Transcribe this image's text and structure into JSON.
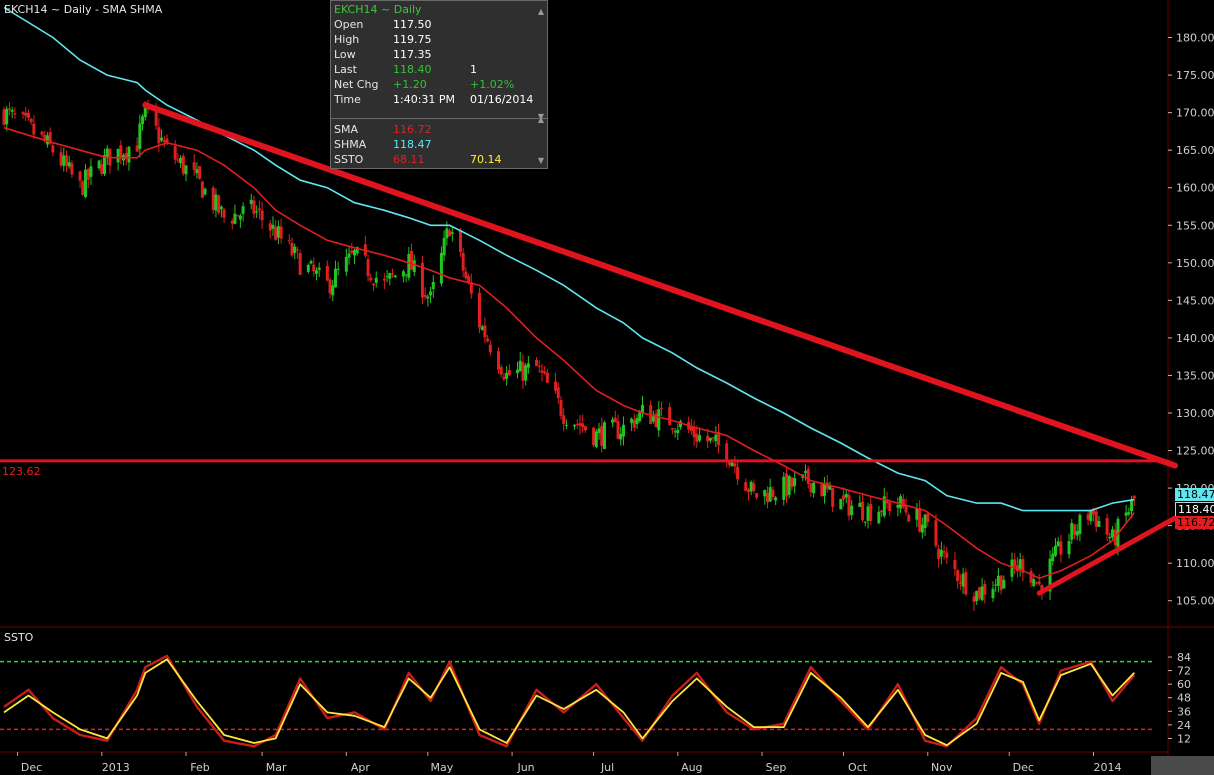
{
  "header": {
    "title": "EKCH14 ~ Daily  -  SMA SHMA",
    "ssto_title": "SSTO"
  },
  "info_box": {
    "symbol": "EKCH14 ~ Daily",
    "open_label": "Open",
    "open": "117.50",
    "high_label": "High",
    "high": "119.75",
    "low_label": "Low",
    "low": "117.35",
    "last_label": "Last",
    "last": "118.40",
    "last_extra": "1",
    "netchg_label": "Net Chg",
    "netchg": "+1.20",
    "netchg_pct": "+1.02%",
    "time_label": "Time",
    "time": "1:40:31 PM",
    "date": "01/16/2014",
    "sma_label": "SMA",
    "sma": "116.72",
    "shma_label": "SHMA",
    "shma": "118.47",
    "ssto_label": "SSTO",
    "ssto_k": "68.11",
    "ssto_d": "70.14"
  },
  "price_tags": {
    "shma": "118.47",
    "last": "118.40",
    "sma": "116.72",
    "horizontal_level": "123.62"
  },
  "colors": {
    "up": "#22c422",
    "down": "#e02020",
    "sma": "#e01e1e",
    "shma": "#5fe6ef",
    "trend": "#e0141e",
    "ssto_k": "#c81e1e",
    "ssto_d": "#ffe83a",
    "grid_green": "#22e022",
    "grid_red": "#e02020"
  },
  "chart_data": [
    {
      "type": "candlestick",
      "title": "EKCH14 ~ Daily  -  SMA SHMA",
      "x_tick_labels": [
        "Dec",
        "2013",
        "Feb",
        "Mar",
        "Apr",
        "May",
        "Jun",
        "Jul",
        "Aug",
        "Sep",
        "Oct",
        "Nov",
        "Dec",
        "2014"
      ],
      "y_tick_labels": [
        "105.00",
        "110.00",
        "115.00",
        "120.00",
        "125.00",
        "130.00",
        "135.00",
        "140.00",
        "145.00",
        "150.00",
        "155.00",
        "160.00",
        "165.00",
        "170.00",
        "175.00",
        "180.00"
      ],
      "ylim": [
        101.5,
        185
      ],
      "x": [
        "2012-11-26",
        "2012-12-05",
        "2012-12-14",
        "2012-12-24",
        "2013-01-03",
        "2013-01-14",
        "2013-01-17",
        "2013-01-25",
        "2013-02-05",
        "2013-02-15",
        "2013-02-26",
        "2013-03-06",
        "2013-03-15",
        "2013-03-25",
        "2013-04-04",
        "2013-04-15",
        "2013-04-24",
        "2013-05-02",
        "2013-05-09",
        "2013-05-20",
        "2013-05-30",
        "2013-06-10",
        "2013-06-20",
        "2013-07-02",
        "2013-07-12",
        "2013-07-19",
        "2013-07-30",
        "2013-08-08",
        "2013-08-19",
        "2013-08-29",
        "2013-09-09",
        "2013-09-19",
        "2013-09-30",
        "2013-10-10",
        "2013-10-21",
        "2013-10-31",
        "2013-11-08",
        "2013-11-19",
        "2013-11-28",
        "2013-12-06",
        "2013-12-12",
        "2013-12-20",
        "2013-12-31",
        "2014-01-08",
        "2014-01-16"
      ],
      "close": [
        170,
        168,
        165,
        160,
        164,
        166,
        170,
        165,
        161,
        156,
        157,
        154,
        150,
        147,
        151,
        147,
        150,
        145,
        155,
        142,
        135,
        136,
        130,
        127,
        128,
        130,
        129,
        127,
        125,
        119,
        120,
        121,
        118,
        117,
        118,
        115,
        110,
        106,
        108,
        110,
        107,
        112,
        117,
        113,
        118.4
      ],
      "series": [
        {
          "name": "SMA",
          "values": [
            168,
            167,
            166,
            165,
            164,
            164,
            165,
            166,
            165,
            163,
            160,
            157,
            155,
            153,
            152,
            151,
            150,
            149,
            148,
            147,
            144,
            140,
            137,
            133,
            131,
            130,
            129,
            128,
            127,
            125,
            123,
            121,
            120,
            119,
            118,
            117,
            115,
            112,
            110,
            109,
            108,
            109,
            111,
            113,
            116.72
          ]
        },
        {
          "name": "SHMA",
          "values": [
            184,
            182,
            180,
            177,
            175,
            174,
            173,
            171,
            169,
            167,
            165,
            163,
            161,
            160,
            158,
            157,
            156,
            155,
            155,
            153,
            151,
            149,
            147,
            144,
            142,
            140,
            138,
            136,
            134,
            132,
            130,
            128,
            126,
            124,
            122,
            121,
            119,
            118,
            118,
            117,
            117,
            117,
            117,
            118,
            118.47
          ]
        }
      ],
      "trendlines": [
        {
          "from": [
            "2013-01-17",
            171
          ],
          "to": [
            "2014-01-31",
            123
          ]
        },
        {
          "from": [
            "2013-12-12",
            106
          ],
          "to": [
            "2014-01-31",
            116
          ]
        }
      ],
      "horizontal_lines": [
        123.62
      ]
    },
    {
      "type": "line",
      "title": "SSTO",
      "y_tick_labels": [
        "84",
        "72",
        "60",
        "48",
        "36",
        "24",
        "12"
      ],
      "ylim": [
        0,
        92
      ],
      "reference_lines": [
        80,
        20
      ],
      "series": [
        {
          "name": "SSTO %K",
          "values": [
            40,
            55,
            30,
            15,
            10,
            55,
            75,
            85,
            40,
            10,
            5,
            15,
            65,
            30,
            35,
            20,
            70,
            45,
            80,
            15,
            5,
            55,
            35,
            60,
            30,
            10,
            50,
            70,
            35,
            20,
            25,
            75,
            45,
            20,
            60,
            10,
            5,
            30,
            75,
            60,
            25,
            72,
            80,
            45,
            68.11
          ]
        },
        {
          "name": "SSTO %D",
          "values": [
            35,
            50,
            35,
            20,
            12,
            50,
            70,
            82,
            45,
            15,
            8,
            12,
            60,
            35,
            32,
            22,
            65,
            48,
            75,
            20,
            8,
            50,
            38,
            55,
            35,
            12,
            45,
            65,
            40,
            22,
            22,
            70,
            48,
            22,
            55,
            15,
            6,
            25,
            70,
            62,
            28,
            68,
            78,
            50,
            70.14
          ]
        }
      ]
    }
  ]
}
